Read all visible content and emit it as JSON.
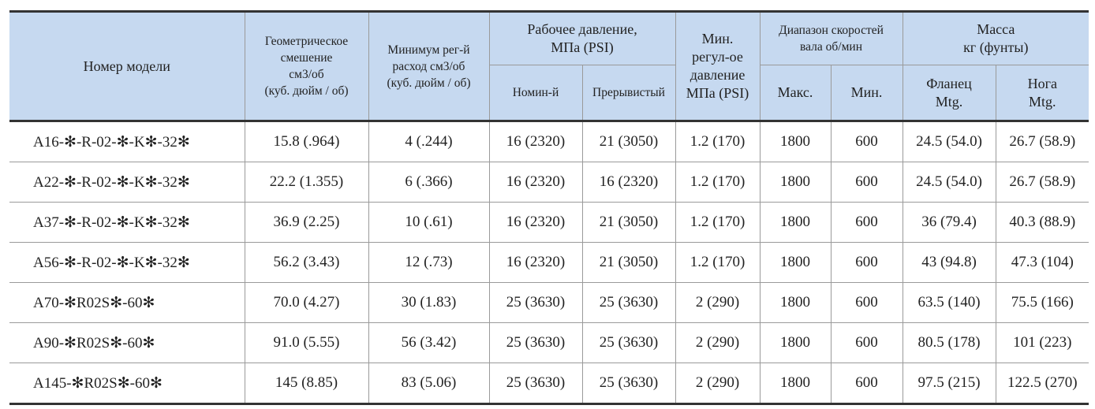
{
  "header": {
    "model": "Номер модели",
    "displacement": [
      "Геометрическое",
      "смешение",
      "см3/об",
      "(куб. дюйм / об)"
    ],
    "min_flow": [
      "Минимум рег-й",
      "расход см3/об",
      "(куб. дюйм / об)"
    ],
    "pressure": {
      "title": [
        "Рабочее давление,",
        "МПа (PSI)"
      ],
      "nominal": "Номин-й",
      "intermittent": "Прерывистый"
    },
    "min_pressure": [
      "Мин.",
      "регул-ое",
      "давление",
      "МПа (PSI)"
    ],
    "speed": {
      "title": [
        "Диапазон скоростей",
        "вала об/мин"
      ],
      "max": "Макс.",
      "min": "Мин."
    },
    "mass": {
      "title": [
        "Масса",
        "кг (фунты)"
      ],
      "flange": [
        "Фланец",
        "Mtg."
      ],
      "foot": [
        "Нога",
        "Mtg."
      ]
    }
  },
  "table": {
    "rows": [
      [
        "A16-✻-R-02-✻-K✻-32✻",
        "15.8 (.964)",
        "4 (.244)",
        "16 (2320)",
        "21 (3050)",
        "1.2 (170)",
        "1800",
        "600",
        "24.5 (54.0)",
        "26.7 (58.9)"
      ],
      [
        "A22-✻-R-02-✻-K✻-32✻",
        "22.2 (1.355)",
        "6 (.366)",
        "16 (2320)",
        "16 (2320)",
        "1.2 (170)",
        "1800",
        "600",
        "24.5 (54.0)",
        "26.7 (58.9)"
      ],
      [
        "A37-✻-R-02-✻-K✻-32✻",
        "36.9 (2.25)",
        "10 (.61)",
        "16 (2320)",
        "21 (3050)",
        "1.2 (170)",
        "1800",
        "600",
        "36 (79.4)",
        "40.3 (88.9)"
      ],
      [
        "A56-✻-R-02-✻-K✻-32✻",
        "56.2 (3.43)",
        "12 (.73)",
        "16 (2320)",
        "21 (3050)",
        "1.2 (170)",
        "1800",
        "600",
        "43 (94.8)",
        "47.3 (104)"
      ],
      [
        "A70-✻R02S✻-60✻",
        "70.0 (4.27)",
        "30 (1.83)",
        "25 (3630)",
        "25 (3630)",
        "2 (290)",
        "1800",
        "600",
        "63.5 (140)",
        "75.5 (166)"
      ],
      [
        "A90-✻R02S✻-60✻",
        "91.0 (5.55)",
        "56 (3.42)",
        "25 (3630)",
        "25 (3630)",
        "2 (290)",
        "1800",
        "600",
        "80.5 (178)",
        "101 (223)"
      ],
      [
        "A145-✻R02S✻-60✻",
        "145 (8.85)",
        "83 (5.06)",
        "25 (3630)",
        "25 (3630)",
        "2 (290)",
        "1800",
        "600",
        "97.5 (215)",
        "122.5 (270)"
      ]
    ]
  }
}
